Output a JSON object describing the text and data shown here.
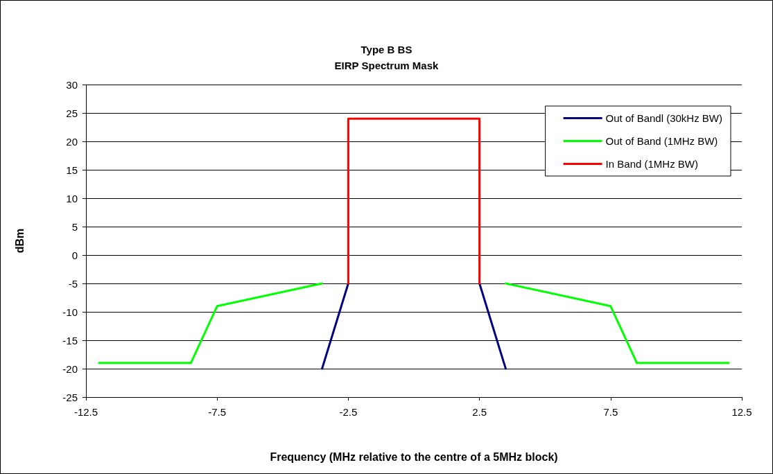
{
  "chart_data": {
    "type": "line",
    "title": "Type B BS",
    "subtitle": "EIRP Spectrum Mask",
    "xlabel": "Frequency (MHz relative to the centre of a 5MHz block)",
    "ylabel": "dBm",
    "series": [
      {
        "name": "Out of Bandl (30kHz BW)",
        "color": "#000080",
        "x": [
          -3.5,
          -2.5,
          0,
          2.5,
          3.5
        ],
        "values": [
          -20,
          -5,
          null,
          -5,
          -20
        ]
      },
      {
        "name": "Out of Band (1MHz BW)",
        "color": "#00ff00",
        "x": [
          -12,
          -8.5,
          -7.5,
          -3.5,
          0,
          3.5,
          7.5,
          8.5,
          12
        ],
        "values": [
          -19,
          -19,
          -9,
          -5,
          null,
          -5,
          -9,
          -19,
          -19
        ]
      },
      {
        "name": "In Band (1MHz BW)",
        "color": "#ff0000",
        "x": [
          -2.5,
          -2.5,
          2.5,
          2.5
        ],
        "values": [
          -5,
          24,
          24,
          -5
        ]
      }
    ],
    "xlim": [
      -12.5,
      12.5
    ],
    "xticks": [
      -12.5,
      -7.5,
      -2.5,
      2.5,
      7.5,
      12.5
    ],
    "ylim": [
      -25,
      30
    ],
    "yticks": [
      -25,
      -20,
      -15,
      -10,
      -5,
      0,
      5,
      10,
      15,
      20,
      25,
      30
    ],
    "grid": "y",
    "legend": "top right",
    "marker": "none",
    "line_style": "solid"
  }
}
